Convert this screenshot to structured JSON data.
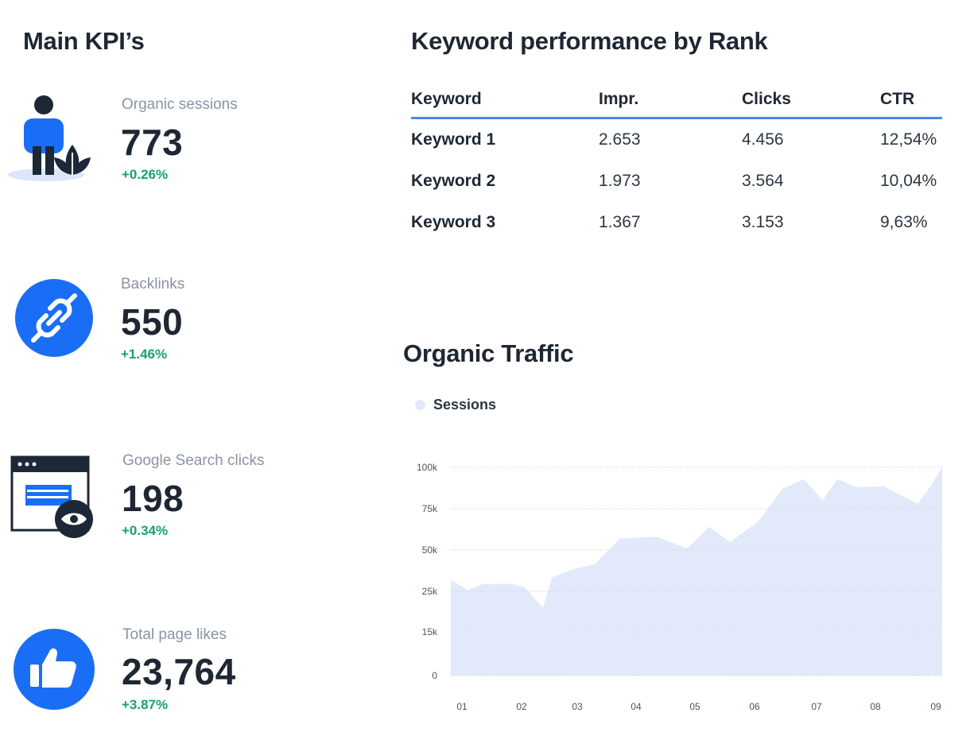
{
  "kpis": {
    "title": "Main KPI’s",
    "items": [
      {
        "label": "Organic sessions",
        "value": "773",
        "change": "+0.26%",
        "icon": "person-plant-icon"
      },
      {
        "label": "Backlinks",
        "value": "550",
        "change": "+1.46%",
        "icon": "link-icon"
      },
      {
        "label": "Google Search clicks",
        "value": "198",
        "change": "+0.34%",
        "icon": "browser-eye-icon"
      },
      {
        "label": "Total page likes",
        "value": "23,764",
        "change": "+3.87%",
        "icon": "thumbs-up-icon"
      }
    ]
  },
  "keywords": {
    "title": "Keyword performance by Rank",
    "columns": [
      "Keyword",
      "Impr.",
      "Clicks",
      "CTR"
    ],
    "rows": [
      [
        "Keyword 1",
        "2.653",
        "4.456",
        "12,54%"
      ],
      [
        "Keyword 2",
        "1.973",
        "3.564",
        "10,04%"
      ],
      [
        "Keyword 3",
        "1.367",
        "3.153",
        "9,63%"
      ]
    ]
  },
  "traffic": {
    "title": "Organic Traffic",
    "legend": "Sessions"
  },
  "colors": {
    "accent": "#1a6ef5",
    "positive": "#16a36a",
    "area_fill": "#e2e9fb",
    "grid": "#d7dbe2"
  },
  "chart_data": {
    "type": "area",
    "grid": true,
    "legend_placement": "top-left",
    "ytick_labels": [
      "0",
      "15k",
      "25k",
      "50k",
      "75k",
      "100k"
    ],
    "xtick_labels": [
      "01",
      "02",
      "03",
      "04",
      "05",
      "06",
      "07",
      "08",
      "09"
    ],
    "xlim": [
      1,
      9
    ],
    "series": [
      {
        "name": "Sessions",
        "points": [
          [
            1.0,
            32000
          ],
          [
            1.27,
            25800
          ],
          [
            1.53,
            29500
          ],
          [
            2.0,
            29500
          ],
          [
            2.2,
            27500
          ],
          [
            2.5,
            21000
          ],
          [
            2.65,
            33500
          ],
          [
            3.0,
            38500
          ],
          [
            3.35,
            41500
          ],
          [
            3.75,
            57000
          ],
          [
            4.35,
            58000
          ],
          [
            4.85,
            51000
          ],
          [
            5.2,
            64000
          ],
          [
            5.55,
            55000
          ],
          [
            6.0,
            67000
          ],
          [
            6.4,
            87000
          ],
          [
            6.75,
            93000
          ],
          [
            7.05,
            80000
          ],
          [
            7.3,
            93000
          ],
          [
            7.6,
            88000
          ],
          [
            8.05,
            88500
          ],
          [
            8.6,
            78000
          ],
          [
            8.8,
            88000
          ],
          [
            9.0,
            100000
          ]
        ]
      }
    ]
  }
}
